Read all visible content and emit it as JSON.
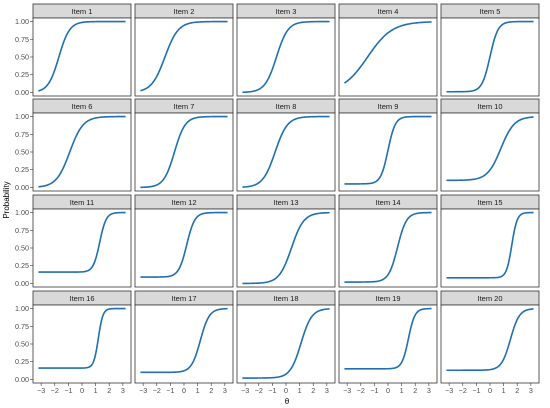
{
  "chart_data": {
    "type": "line",
    "xlabel": "θ",
    "ylabel": "Probability",
    "xlim": [
      -3.6,
      3.6
    ],
    "ylim": [
      -0.05,
      1.05
    ],
    "x_ticks": [
      -3,
      -2,
      -1,
      0,
      1,
      2,
      3
    ],
    "x_tick_labels": [
      "−3",
      "−2",
      "−1",
      "0",
      "1",
      "2",
      "3"
    ],
    "y_ticks": [
      0,
      0.25,
      0.5,
      0.75,
      1
    ],
    "y_tick_labels": [
      "0.00",
      "0.25",
      "0.50",
      "0.75",
      "1.00"
    ],
    "x_range": [
      -3.2,
      3.2
    ],
    "grid": false,
    "line_color": "#1f6fb2",
    "strip_fill": "#d9d9d9",
    "panels": [
      {
        "title": "Item 1",
        "a": 1.5,
        "b": -1.7,
        "c": 0.0
      },
      {
        "title": "Item 2",
        "a": 1.2,
        "b": -1.4,
        "c": 0.0
      },
      {
        "title": "Item 3",
        "a": 1.4,
        "b": -0.7,
        "c": 0.0
      },
      {
        "title": "Item 4",
        "a": 0.65,
        "b": -1.5,
        "c": 0.0
      },
      {
        "title": "Item 5",
        "a": 2.0,
        "b": 0.0,
        "c": 0.01
      },
      {
        "title": "Item 6",
        "a": 1.2,
        "b": -0.9,
        "c": 0.0
      },
      {
        "title": "Item 7",
        "a": 1.5,
        "b": -0.7,
        "c": 0.0
      },
      {
        "title": "Item 8",
        "a": 1.3,
        "b": -0.8,
        "c": 0.0
      },
      {
        "title": "Item 9",
        "a": 2.2,
        "b": 0.0,
        "c": 0.05
      },
      {
        "title": "Item 10",
        "a": 1.2,
        "b": 0.8,
        "c": 0.1
      },
      {
        "title": "Item 11",
        "a": 2.5,
        "b": 1.3,
        "c": 0.16
      },
      {
        "title": "Item 12",
        "a": 2.0,
        "b": 0.2,
        "c": 0.09
      },
      {
        "title": "Item 13",
        "a": 1.3,
        "b": 0.4,
        "c": 0.0
      },
      {
        "title": "Item 14",
        "a": 1.8,
        "b": 0.7,
        "c": 0.02
      },
      {
        "title": "Item 15",
        "a": 3.0,
        "b": 1.6,
        "c": 0.08
      },
      {
        "title": "Item 16",
        "a": 3.5,
        "b": 1.2,
        "c": 0.16
      },
      {
        "title": "Item 17",
        "a": 1.8,
        "b": 1.2,
        "c": 0.1
      },
      {
        "title": "Item 18",
        "a": 1.5,
        "b": 1.1,
        "c": 0.02
      },
      {
        "title": "Item 19",
        "a": 2.5,
        "b": 1.5,
        "c": 0.15
      },
      {
        "title": "Item 20",
        "a": 1.8,
        "b": 1.5,
        "c": 0.13
      }
    ]
  }
}
